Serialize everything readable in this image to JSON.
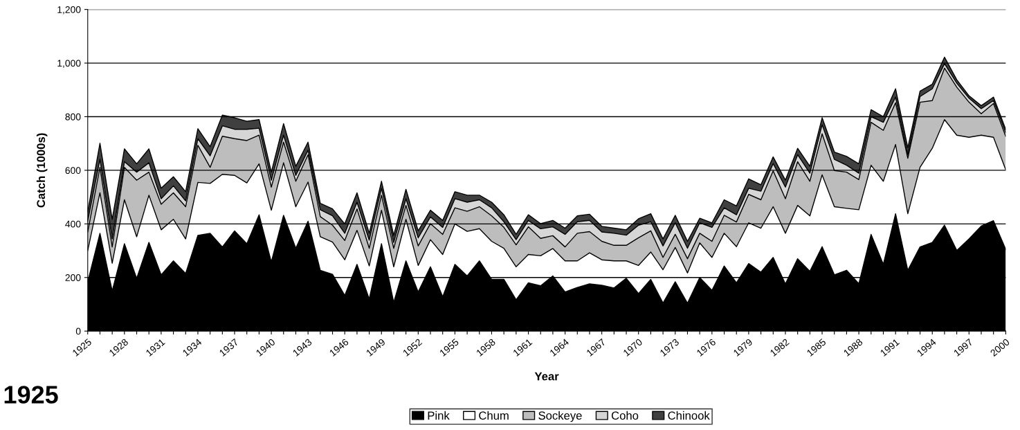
{
  "chart_data": {
    "type": "area",
    "stacked": true,
    "xlabel": "Year",
    "ylabel": "Catch (1000s)",
    "annotations": [
      "1925"
    ],
    "x": [
      1925,
      1926,
      1927,
      1928,
      1929,
      1930,
      1931,
      1932,
      1933,
      1934,
      1935,
      1936,
      1937,
      1938,
      1939,
      1940,
      1941,
      1942,
      1943,
      1944,
      1945,
      1946,
      1947,
      1948,
      1949,
      1950,
      1951,
      1952,
      1953,
      1954,
      1955,
      1956,
      1957,
      1958,
      1959,
      1960,
      1961,
      1962,
      1963,
      1964,
      1965,
      1966,
      1967,
      1968,
      1969,
      1970,
      1971,
      1972,
      1973,
      1974,
      1975,
      1976,
      1977,
      1978,
      1979,
      1980,
      1981,
      1982,
      1983,
      1984,
      1985,
      1986,
      1987,
      1988,
      1989,
      1990,
      1991,
      1992,
      1993,
      1994,
      1995,
      1996,
      1997,
      1998,
      1999,
      2000
    ],
    "series": [
      {
        "name": "Pink",
        "color": "#000000",
        "values": [
          184,
          365,
          150,
          326,
          197,
          331,
          210,
          262,
          215,
          357,
          365,
          314,
          374,
          326,
          434,
          258,
          432,
          309,
          410,
          227,
          212,
          133,
          249,
          120,
          326,
          107,
          262,
          146,
          240,
          128,
          249,
          206,
          262,
          193,
          193,
          117,
          180,
          169,
          206,
          146,
          163,
          176,
          171,
          161,
          197,
          140,
          193,
          105,
          184,
          104,
          200,
          152,
          243,
          180,
          252,
          220,
          275,
          176,
          270,
          223,
          315,
          210,
          227,
          177,
          361,
          249,
          438,
          227,
          314,
          331,
          395,
          301,
          344,
          392,
          412,
          305
        ]
      },
      {
        "name": "Chum",
        "color": "#ffffff",
        "values": [
          116,
          151,
          103,
          164,
          155,
          176,
          168,
          155,
          129,
          198,
          186,
          271,
          207,
          227,
          190,
          193,
          196,
          155,
          146,
          125,
          120,
          133,
          127,
          123,
          125,
          133,
          155,
          99,
          101,
          158,
          151,
          166,
          120,
          142,
          116,
          123,
          106,
          112,
          102,
          116,
          99,
          116,
          95,
          101,
          65,
          105,
          102,
          124,
          128,
          113,
          129,
          123,
          122,
          135,
          152,
          164,
          189,
          189,
          199,
          207,
          268,
          254,
          231,
          276,
          258,
          310,
          258,
          211,
          297,
          351,
          394,
          430,
          379,
          339,
          311,
          297
        ]
      },
      {
        "name": "Sockeye",
        "color": "#bdbdbd",
        "values": [
          70,
          95,
          61,
          121,
          211,
          86,
          95,
          99,
          120,
          138,
          60,
          142,
          137,
          158,
          107,
          86,
          77,
          95,
          102,
          75,
          63,
          72,
          80,
          66,
          56,
          69,
          52,
          73,
          60,
          75,
          60,
          75,
          82,
          95,
          78,
          82,
          103,
          65,
          48,
          52,
          103,
          79,
          69,
          58,
          58,
          103,
          79,
          46,
          49,
          53,
          36,
          60,
          67,
          92,
          106,
          106,
          134,
          129,
          163,
          129,
          153,
          135,
          135,
          112,
          160,
          190,
          156,
          207,
          243,
          178,
          192,
          179,
          131,
          80,
          126,
          125
        ]
      },
      {
        "name": "Coho",
        "color": "#d6d6d6",
        "values": [
          40,
          30,
          30,
          21,
          30,
          35,
          21,
          26,
          22,
          25,
          43,
          39,
          35,
          42,
          26,
          26,
          26,
          22,
          17,
          26,
          35,
          27,
          25,
          30,
          26,
          22,
          25,
          30,
          25,
          26,
          34,
          34,
          26,
          30,
          21,
          19,
          24,
          36,
          33,
          47,
          43,
          42,
          35,
          45,
          38,
          47,
          34,
          43,
          43,
          39,
          39,
          52,
          28,
          27,
          23,
          32,
          27,
          43,
          26,
          30,
          34,
          42,
          26,
          24,
          21,
          30,
          21,
          13,
          21,
          44,
          17,
          15,
          15,
          19,
          11,
          13
        ]
      },
      {
        "name": "Chinook",
        "color": "#404040",
        "values": [
          35,
          60,
          73,
          48,
          31,
          52,
          39,
          34,
          34,
          37,
          34,
          40,
          43,
          30,
          32,
          30,
          43,
          34,
          30,
          24,
          26,
          35,
          35,
          26,
          26,
          26,
          35,
          26,
          25,
          26,
          26,
          26,
          17,
          21,
          26,
          20,
          21,
          19,
          24,
          23,
          22,
          23,
          21,
          19,
          20,
          24,
          30,
          26,
          28,
          26,
          17,
          17,
          30,
          33,
          35,
          24,
          25,
          26,
          24,
          26,
          26,
          27,
          33,
          35,
          26,
          21,
          31,
          26,
          20,
          17,
          24,
          13,
          9,
          11,
          13,
          13
        ]
      }
    ],
    "xlim": [
      1925,
      2000
    ],
    "xticks": [
      {
        "value": 1925,
        "label": "1925"
      },
      {
        "value": 1926,
        "label": null
      },
      {
        "value": 1927,
        "label": null
      },
      {
        "value": 1928,
        "label": "1928"
      },
      {
        "value": 1929,
        "label": null
      },
      {
        "value": 1930,
        "label": null
      },
      {
        "value": 1931,
        "label": "1931"
      },
      {
        "value": 1932,
        "label": null
      },
      {
        "value": 1933,
        "label": null
      },
      {
        "value": 1934,
        "label": "1934"
      },
      {
        "value": 1935,
        "label": null
      },
      {
        "value": 1936,
        "label": null
      },
      {
        "value": 1937,
        "label": "1937"
      },
      {
        "value": 1938,
        "label": null
      },
      {
        "value": 1939,
        "label": null
      },
      {
        "value": 1940,
        "label": "1940"
      },
      {
        "value": 1941,
        "label": null
      },
      {
        "value": 1942,
        "label": null
      },
      {
        "value": 1943,
        "label": "1943"
      },
      {
        "value": 1944,
        "label": null
      },
      {
        "value": 1945,
        "label": null
      },
      {
        "value": 1946,
        "label": "1946"
      },
      {
        "value": 1947,
        "label": null
      },
      {
        "value": 1948,
        "label": null
      },
      {
        "value": 1949,
        "label": "1949"
      },
      {
        "value": 1950,
        "label": null
      },
      {
        "value": 1951,
        "label": null
      },
      {
        "value": 1952,
        "label": "1952"
      },
      {
        "value": 1953,
        "label": null
      },
      {
        "value": 1954,
        "label": null
      },
      {
        "value": 1955,
        "label": "1955"
      },
      {
        "value": 1956,
        "label": null
      },
      {
        "value": 1957,
        "label": null
      },
      {
        "value": 1958,
        "label": "1958"
      },
      {
        "value": 1959,
        "label": null
      },
      {
        "value": 1960,
        "label": null
      },
      {
        "value": 1961,
        "label": "1961"
      },
      {
        "value": 1962,
        "label": null
      },
      {
        "value": 1963,
        "label": null
      },
      {
        "value": 1964,
        "label": "1964"
      },
      {
        "value": 1965,
        "label": null
      },
      {
        "value": 1966,
        "label": null
      },
      {
        "value": 1967,
        "label": "1967"
      },
      {
        "value": 1968,
        "label": null
      },
      {
        "value": 1969,
        "label": null
      },
      {
        "value": 1970,
        "label": "1970"
      },
      {
        "value": 1971,
        "label": null
      },
      {
        "value": 1972,
        "label": null
      },
      {
        "value": 1973,
        "label": "1973"
      },
      {
        "value": 1974,
        "label": null
      },
      {
        "value": 1975,
        "label": null
      },
      {
        "value": 1976,
        "label": "1976"
      },
      {
        "value": 1977,
        "label": null
      },
      {
        "value": 1978,
        "label": null
      },
      {
        "value": 1979,
        "label": "1979"
      },
      {
        "value": 1980,
        "label": null
      },
      {
        "value": 1981,
        "label": null
      },
      {
        "value": 1982,
        "label": "1982"
      },
      {
        "value": 1983,
        "label": null
      },
      {
        "value": 1984,
        "label": null
      },
      {
        "value": 1985,
        "label": "1985"
      },
      {
        "value": 1986,
        "label": null
      },
      {
        "value": 1987,
        "label": null
      },
      {
        "value": 1988,
        "label": "1988"
      },
      {
        "value": 1989,
        "label": null
      },
      {
        "value": 1990,
        "label": null
      },
      {
        "value": 1991,
        "label": "1991"
      },
      {
        "value": 1992,
        "label": null
      },
      {
        "value": 1993,
        "label": null
      },
      {
        "value": 1994,
        "label": "1994"
      },
      {
        "value": 1995,
        "label": null
      },
      {
        "value": 1996,
        "label": null
      },
      {
        "value": 1997,
        "label": "1997"
      },
      {
        "value": 1998,
        "label": null
      },
      {
        "value": 1999,
        "label": null
      },
      {
        "value": 2000,
        "label": "2000"
      }
    ],
    "ylim": [
      0,
      1200
    ],
    "yticks": [
      0,
      200,
      400,
      600,
      800,
      {
        "value": 1000,
        "label": "1,000"
      },
      {
        "value": 1200,
        "label": "1,200"
      }
    ],
    "grid": "y",
    "legend": "bottom"
  }
}
